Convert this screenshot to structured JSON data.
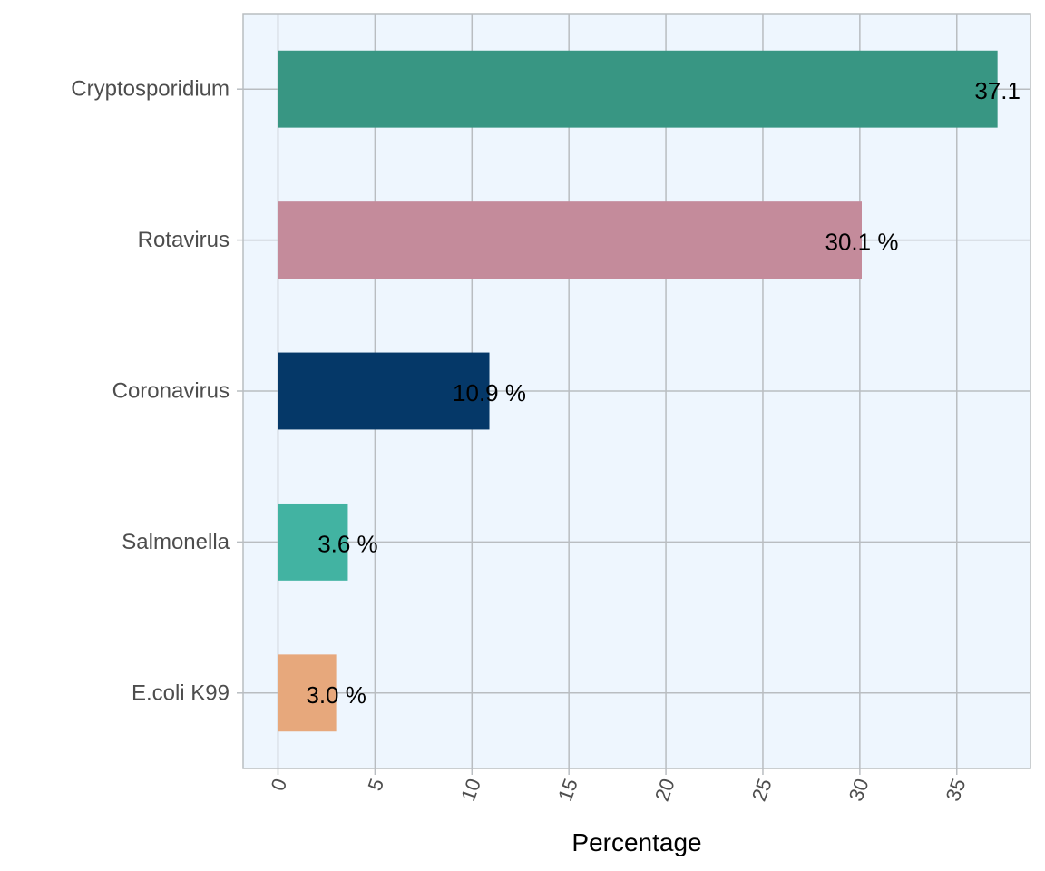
{
  "chart_data": {
    "type": "bar",
    "orientation": "horizontal",
    "categories": [
      "Cryptosporidium",
      "Rotavirus",
      "Coronavirus",
      "Salmonella",
      "E.coli K99"
    ],
    "values": [
      37.1,
      30.1,
      10.9,
      3.6,
      3.0
    ],
    "data_labels": [
      "37.1",
      "30.1 %",
      "10.9 %",
      "3.6 %",
      "3.0 %"
    ],
    "colors": [
      "#389683",
      "#c48b9b",
      "#053868",
      "#42b3a2",
      "#e7a87c"
    ],
    "xlabel": "Percentage",
    "ylabel": "",
    "xticks": [
      "0",
      "5",
      "10",
      "15",
      "20",
      "25",
      "30",
      "35"
    ],
    "xlim": [
      -1.8,
      38.8
    ],
    "grid": true,
    "panel_background": "#eef6fe",
    "grid_color": "#b9bdc1"
  }
}
